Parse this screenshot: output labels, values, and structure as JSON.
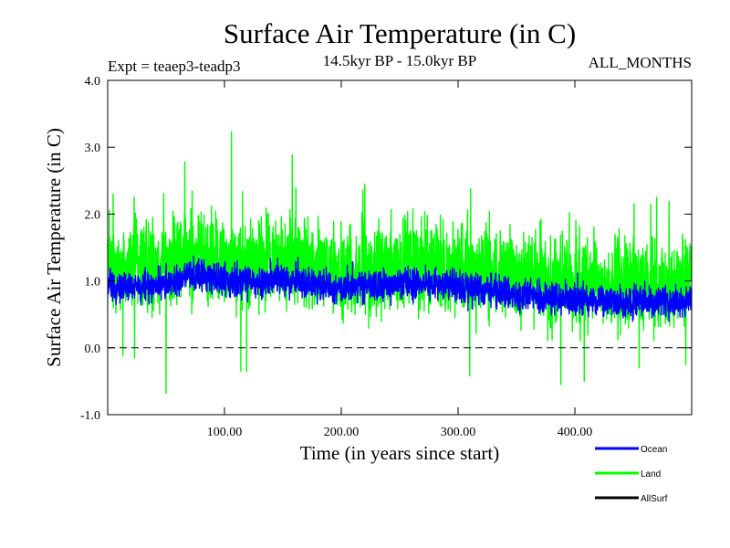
{
  "chart_data": {
    "type": "line",
    "title": "Surface Air Temperature (in C)",
    "subtitle_left": "Expt = teaep3-teadp3",
    "subtitle_center": "14.5kyr BP - 15.0kyr BP",
    "subtitle_right": "ALL_MONTHS",
    "xlabel": "Time (in years since start)",
    "ylabel": "Surface Air Temperature (in C)",
    "xlim": [
      0,
      500
    ],
    "ylim": [
      -1.0,
      4.0
    ],
    "x_ticks": [
      100,
      200,
      300,
      400
    ],
    "x_tick_labels": [
      "100.00",
      "200.00",
      "300.00",
      "400.00"
    ],
    "y_ticks": [
      -1.0,
      0.0,
      1.0,
      2.0,
      3.0,
      4.0
    ],
    "y_tick_labels": [
      "-1.0",
      "0.0",
      "1.0",
      "2.0",
      "3.0",
      "4.0"
    ],
    "reference_line": 0.0,
    "legend_placement": "bottom-right, below plot",
    "series": [
      {
        "name": "Land",
        "color": "#00ff00",
        "anchor_x": [
          0,
          25,
          50,
          75,
          100,
          125,
          150,
          175,
          200,
          225,
          250,
          275,
          300,
          325,
          350,
          375,
          400,
          425,
          450,
          475,
          500
        ],
        "anchor_mean": [
          1.25,
          1.2,
          1.22,
          1.4,
          1.3,
          1.25,
          1.3,
          1.2,
          1.1,
          1.15,
          1.2,
          1.25,
          1.15,
          1.1,
          1.05,
          1.0,
          1.0,
          0.95,
          0.95,
          0.95,
          1.0
        ],
        "spread": 0.45,
        "spikes": [
          {
            "x": 50,
            "y": -0.68
          },
          {
            "x": 66,
            "y": 2.78
          },
          {
            "x": 106,
            "y": 3.23
          },
          {
            "x": 114,
            "y": -0.35
          },
          {
            "x": 119,
            "y": -0.35
          },
          {
            "x": 158,
            "y": 2.88
          },
          {
            "x": 310,
            "y": -0.42
          },
          {
            "x": 388,
            "y": -0.55
          },
          {
            "x": 408,
            "y": -0.5
          },
          {
            "x": 455,
            "y": -0.3
          },
          {
            "x": 495,
            "y": -0.25
          },
          {
            "x": 13,
            "y": -0.12
          },
          {
            "x": 23,
            "y": -0.15
          },
          {
            "x": 465,
            "y": 2.15
          },
          {
            "x": 470,
            "y": 2.25
          }
        ]
      },
      {
        "name": "Ocean",
        "color": "#0000ff",
        "anchor_x": [
          0,
          25,
          50,
          75,
          100,
          125,
          150,
          175,
          200,
          225,
          250,
          275,
          300,
          325,
          350,
          375,
          400,
          425,
          450,
          475,
          500
        ],
        "anchor_mean": [
          0.95,
          0.9,
          0.95,
          1.1,
          1.0,
          0.98,
          1.02,
          0.95,
          0.88,
          0.92,
          0.95,
          0.97,
          0.92,
          0.85,
          0.8,
          0.75,
          0.72,
          0.7,
          0.68,
          0.7,
          0.72
        ],
        "spread": 0.16
      },
      {
        "name": "AllSurf",
        "color": "#000000",
        "visible": false
      }
    ]
  }
}
